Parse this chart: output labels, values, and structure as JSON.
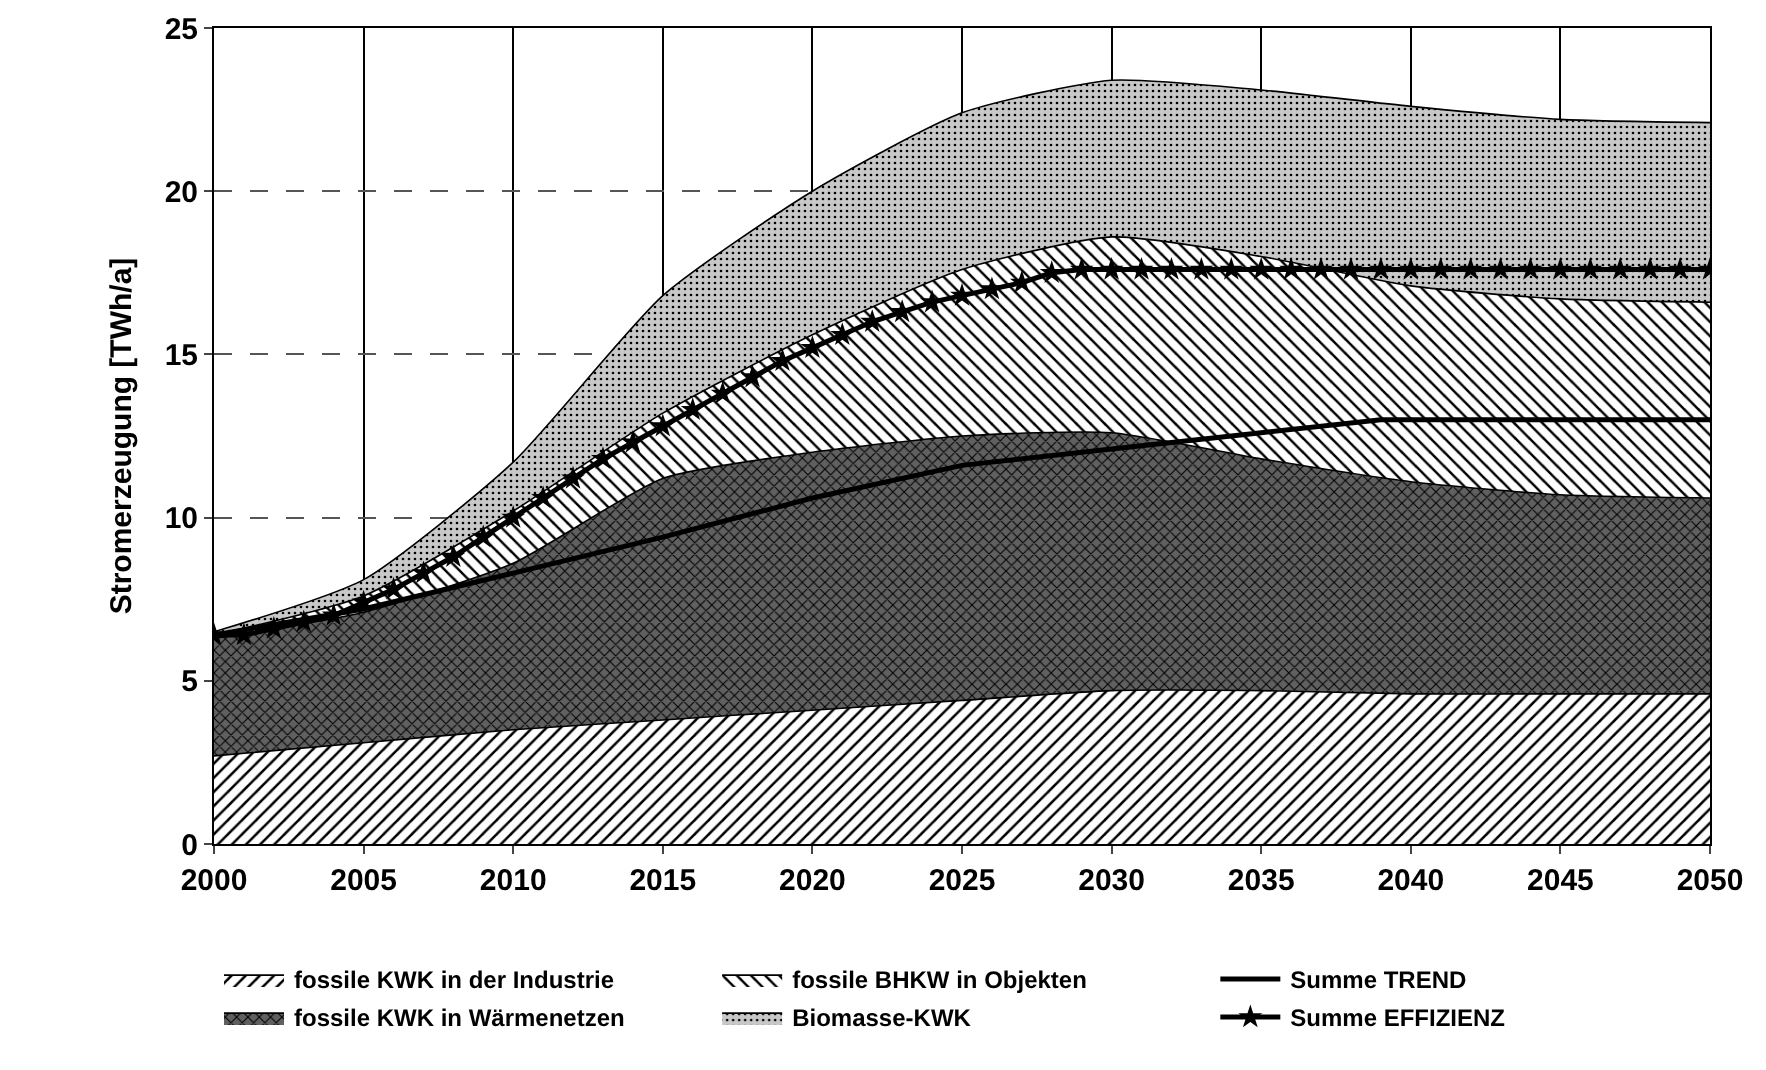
{
  "chart_data": {
    "type": "area",
    "stacked": true,
    "ylabel": "Stromerzeugung [TWh/a]",
    "x": [
      2000,
      2005,
      2010,
      2015,
      2020,
      2025,
      2030,
      2035,
      2040,
      2045,
      2050
    ],
    "xlim": [
      2000,
      2050
    ],
    "xticks": [
      2000,
      2005,
      2010,
      2015,
      2020,
      2025,
      2030,
      2035,
      2040,
      2045,
      2050
    ],
    "ylim": [
      0,
      25
    ],
    "yticks": [
      0,
      5,
      10,
      15,
      20,
      25
    ],
    "grid": true,
    "legend": "bottom",
    "series": [
      {
        "name": "fossile KWK in der Industrie",
        "color": "#ffffff",
        "values": [
          2.7,
          3.1,
          3.5,
          3.8,
          4.1,
          4.4,
          4.7,
          4.7,
          4.6,
          4.6,
          4.6
        ]
      },
      {
        "name": "fossile KWK in Wärmenetzen",
        "color": "#606060",
        "values": [
          3.6,
          4.0,
          5.1,
          7.4,
          7.9,
          8.1,
          7.9,
          7.1,
          6.5,
          6.1,
          6.0
        ]
      },
      {
        "name": "fossile BHKW in Objekten",
        "color": "#ffffff",
        "values": [
          0.1,
          0.5,
          1.6,
          2.0,
          3.6,
          5.1,
          6.0,
          6.2,
          6.0,
          6.0,
          6.0
        ]
      },
      {
        "name": "Biomasse-KWK",
        "color": "#c8c8c8",
        "values": [
          0.1,
          0.5,
          1.5,
          3.6,
          4.4,
          4.8,
          4.8,
          5.1,
          5.5,
          5.5,
          5.5
        ]
      },
      {
        "name": "Summe TREND",
        "type": "line",
        "color": "#000000",
        "marker": "none",
        "x": [
          2000,
          2005,
          2010,
          2015,
          2020,
          2025,
          2030,
          2035,
          2039,
          2050
        ],
        "values": [
          6.4,
          7.2,
          8.3,
          9.4,
          10.6,
          11.6,
          12.1,
          12.6,
          13.0,
          13.0
        ]
      },
      {
        "name": "Summe EFFIZIENZ",
        "type": "line",
        "color": "#000000",
        "marker": "star",
        "x": [
          2000,
          2001,
          2002,
          2003,
          2004,
          2005,
          2006,
          2007,
          2008,
          2009,
          2010,
          2011,
          2012,
          2013,
          2014,
          2015,
          2016,
          2017,
          2018,
          2019,
          2020,
          2021,
          2022,
          2023,
          2024,
          2025,
          2026,
          2027,
          2028,
          2029,
          2030,
          2031,
          2032,
          2033,
          2034,
          2035,
          2036,
          2037,
          2038,
          2039,
          2040,
          2041,
          2042,
          2043,
          2044,
          2045,
          2046,
          2047,
          2048,
          2049,
          2050
        ],
        "values": [
          6.4,
          6.4,
          6.6,
          6.8,
          7.0,
          7.4,
          7.8,
          8.3,
          8.8,
          9.4,
          10.0,
          10.6,
          11.2,
          11.8,
          12.3,
          12.8,
          13.3,
          13.8,
          14.3,
          14.8,
          15.2,
          15.6,
          16.0,
          16.3,
          16.6,
          16.8,
          17.0,
          17.2,
          17.5,
          17.6,
          17.6,
          17.6,
          17.6,
          17.6,
          17.6,
          17.6,
          17.6,
          17.6,
          17.6,
          17.6,
          17.6,
          17.6,
          17.6,
          17.6,
          17.6,
          17.6,
          17.6,
          17.6,
          17.6,
          17.6,
          17.6
        ]
      }
    ]
  }
}
